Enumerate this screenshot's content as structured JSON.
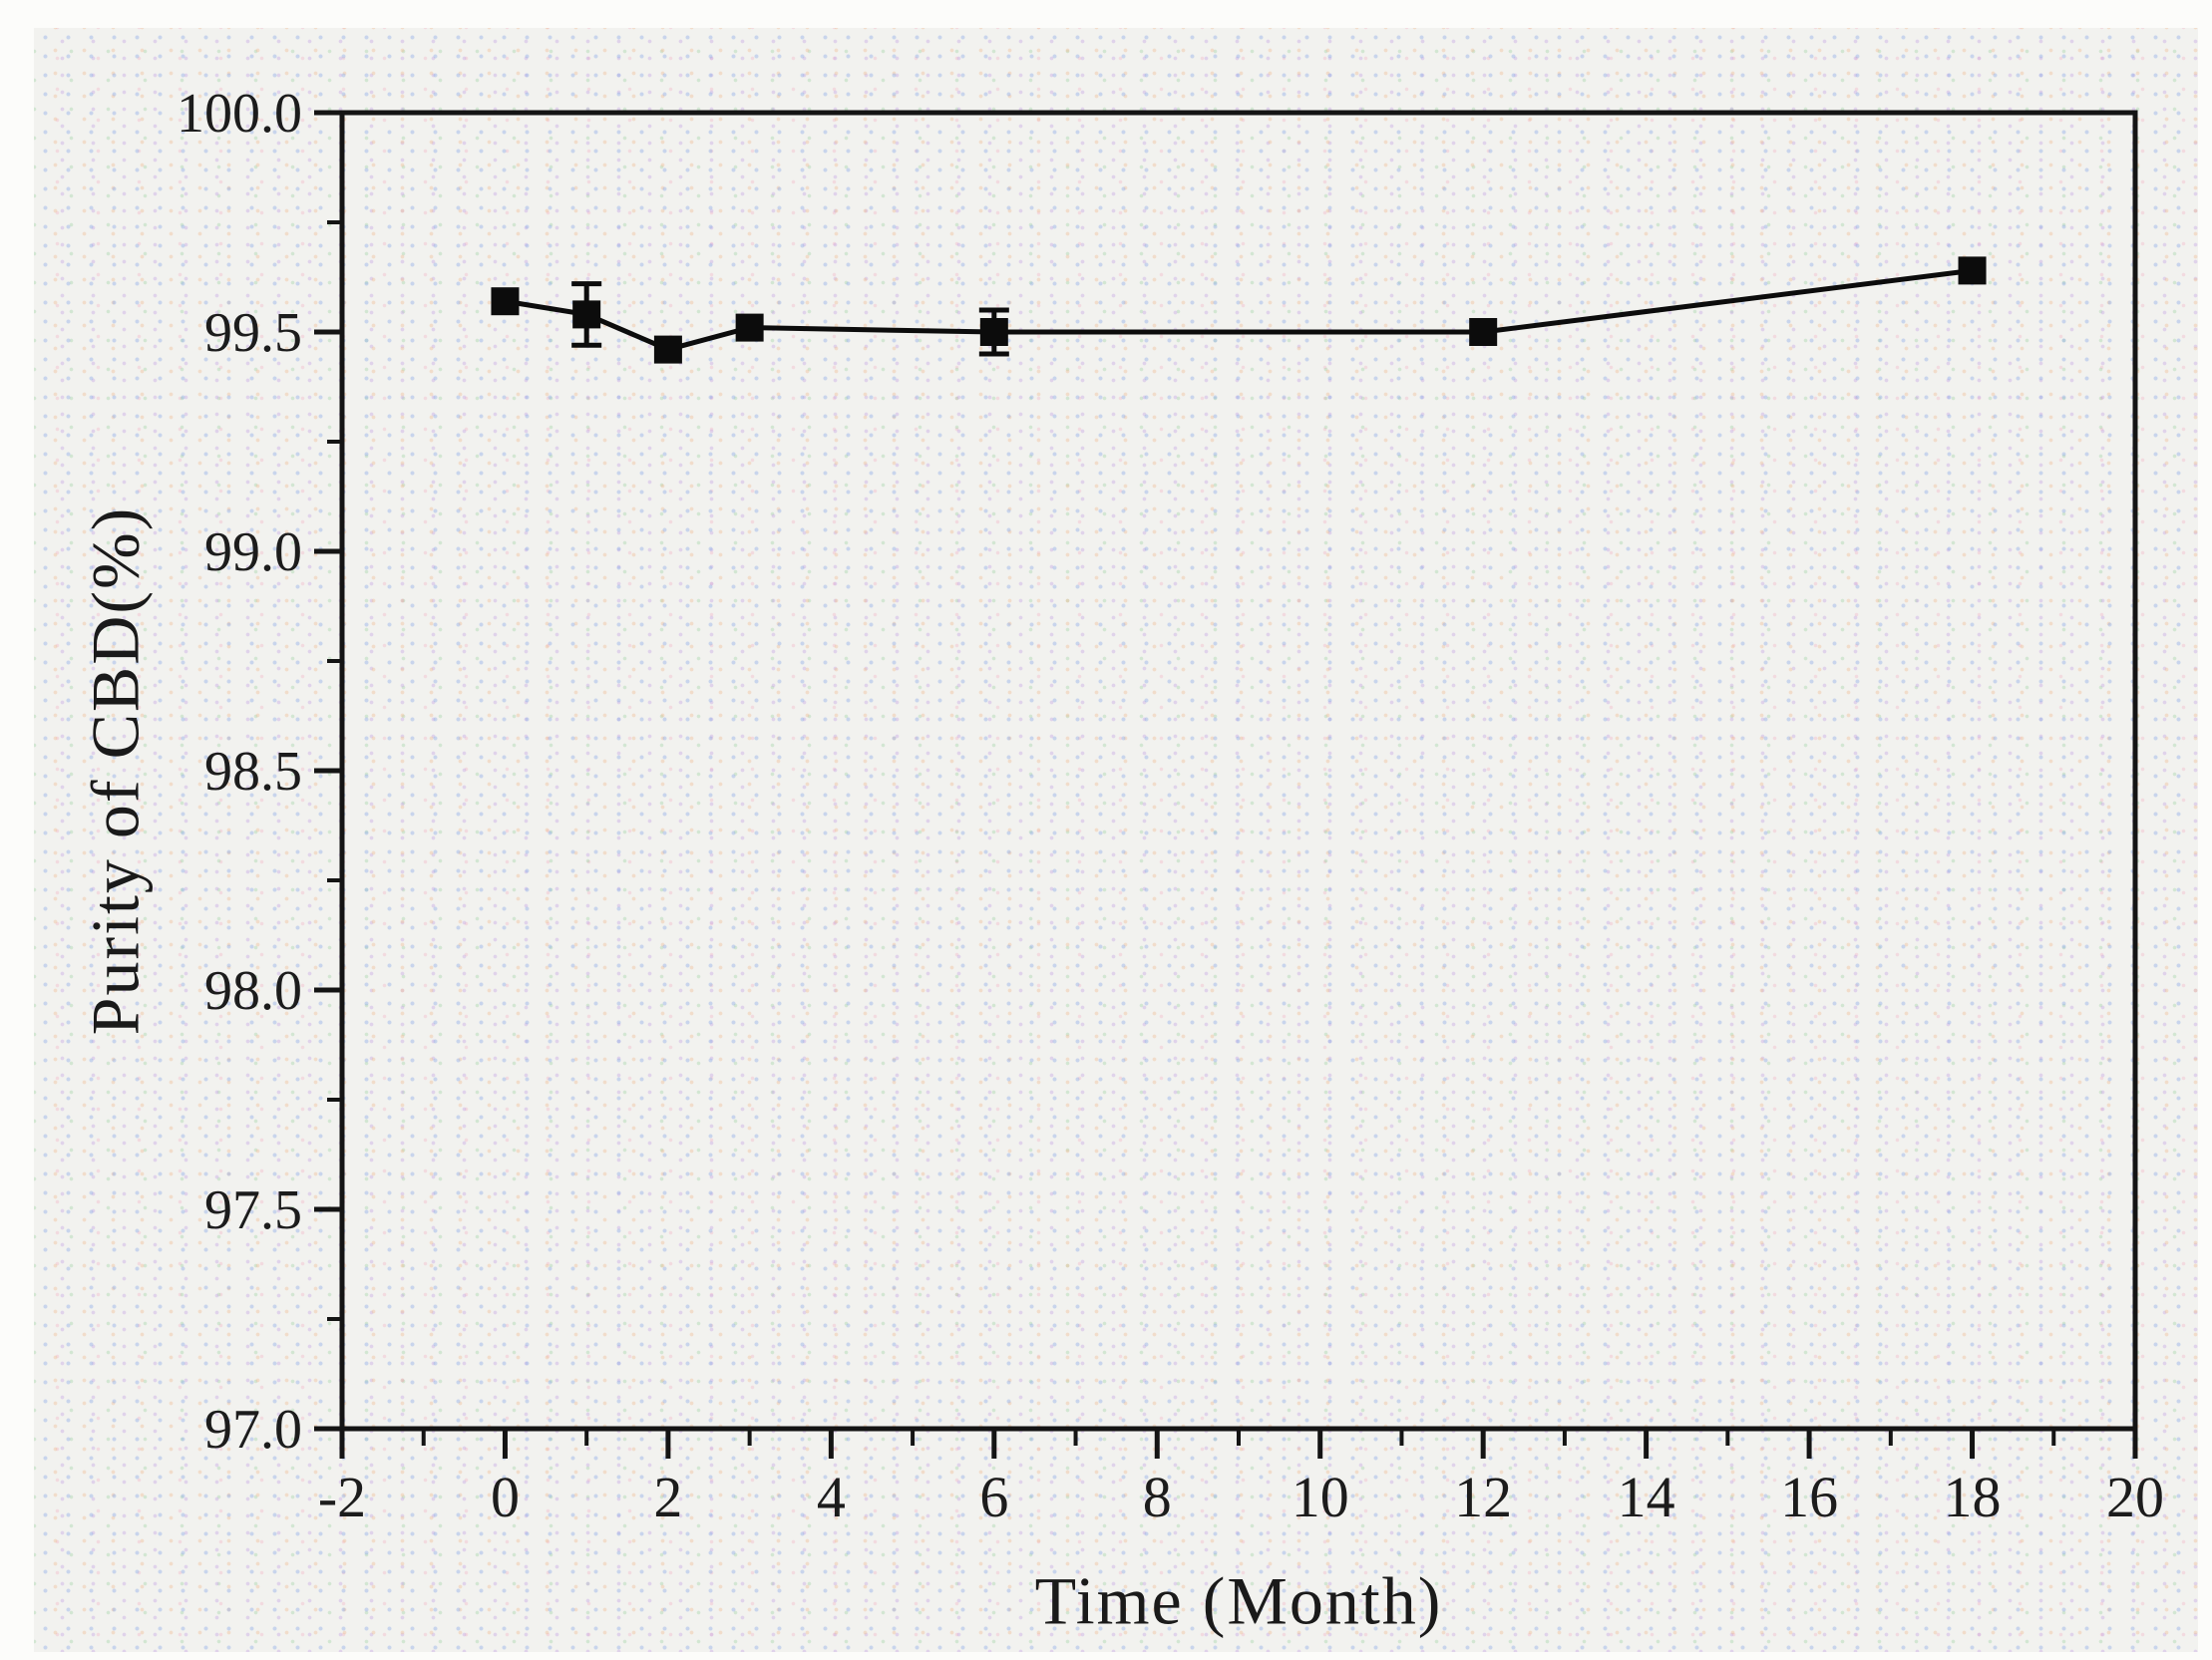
{
  "figure": {
    "outer_background": "#fcfcfa",
    "inner_background": "#f2f2ef",
    "ink_color": "#141414"
  },
  "chart_data": {
    "type": "line",
    "title": "",
    "xlabel": "Time (Month)",
    "ylabel": "Purity of CBD(%)",
    "xlim": [
      -2,
      20
    ],
    "ylim": [
      97.0,
      100.0
    ],
    "grid": false,
    "legend": false,
    "x_major_ticks": [
      -2,
      0,
      2,
      4,
      6,
      8,
      10,
      12,
      14,
      16,
      18,
      20
    ],
    "x_tick_labels": [
      "-2",
      "0",
      "2",
      "4",
      "6",
      "8",
      "10",
      "12",
      "14",
      "16",
      "18",
      "20"
    ],
    "x_minor_ticks": [
      -1,
      1,
      3,
      5,
      7,
      9,
      11,
      13,
      15,
      17,
      19
    ],
    "y_major_ticks": [
      97.0,
      97.5,
      98.0,
      98.5,
      99.0,
      99.5,
      100.0
    ],
    "y_tick_labels": [
      "97.0",
      "97.5",
      "98.0",
      "98.5",
      "99.0",
      "99.5",
      "100.0"
    ],
    "y_minor_ticks": [
      97.25,
      97.75,
      98.25,
      98.75,
      99.25,
      99.75
    ],
    "series": [
      {
        "marker": "square",
        "color": "#0c0c0c",
        "x": [
          0,
          1,
          2,
          3,
          6,
          12,
          18
        ],
        "y": [
          99.57,
          99.54,
          99.46,
          99.51,
          99.5,
          99.5,
          99.64
        ],
        "yerr": [
          0,
          0.07,
          0,
          0,
          0.05,
          0,
          0
        ]
      }
    ]
  }
}
